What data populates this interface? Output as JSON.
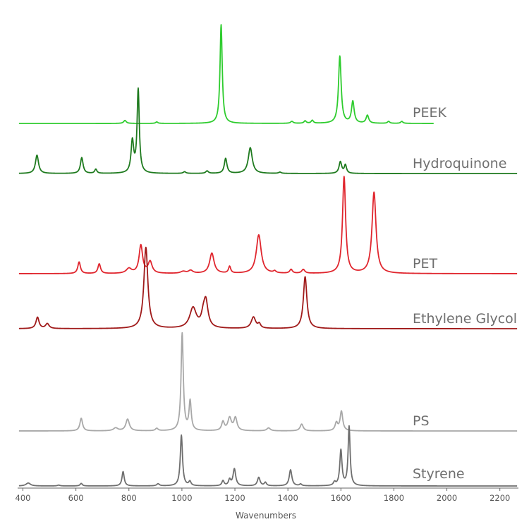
{
  "chart_data": {
    "type": "line",
    "title": "",
    "xlabel": "Wavenumbers",
    "ylabel": "",
    "xlim": [
      380,
      2270
    ],
    "x_ticks": [
      400,
      600,
      800,
      1000,
      1200,
      1400,
      1600,
      1800,
      2000,
      2200
    ],
    "x_tick_labels": [
      "400",
      "600",
      "800",
      "1000",
      "1200",
      "1400",
      "1600",
      "1800",
      "2000",
      "2200"
    ],
    "grid": false,
    "y_axis_visible": false,
    "legend": "none (series labeled at right end of each trace)",
    "layout": "stacked offset spectra, relative intensity",
    "series": [
      {
        "name": "PEEK",
        "color": "#2ecc2e",
        "x_start": 385,
        "x_end": 1950,
        "baseline": 0,
        "peaks": [
          [
            785,
            0.03,
            6
          ],
          [
            905,
            0.015,
            5
          ],
          [
            1148,
            1.0,
            5
          ],
          [
            1415,
            0.02,
            6
          ],
          [
            1465,
            0.025,
            5
          ],
          [
            1492,
            0.03,
            5
          ],
          [
            1596,
            0.68,
            6
          ],
          [
            1645,
            0.22,
            6
          ],
          [
            1700,
            0.08,
            6
          ],
          [
            1780,
            0.02,
            5
          ],
          [
            1830,
            0.02,
            5
          ]
        ]
      },
      {
        "name": "Hydroquinone",
        "color": "#1e7a1e",
        "x_start": 385,
        "x_end": 2265,
        "baseline": 0,
        "peaks": [
          [
            453,
            0.22,
            7
          ],
          [
            622,
            0.19,
            6
          ],
          [
            675,
            0.05,
            5
          ],
          [
            813,
            0.38,
            6
          ],
          [
            835,
            1.0,
            5
          ],
          [
            1010,
            0.02,
            6
          ],
          [
            1095,
            0.03,
            6
          ],
          [
            1165,
            0.18,
            6
          ],
          [
            1258,
            0.31,
            9
          ],
          [
            1370,
            0.015,
            6
          ],
          [
            1598,
            0.14,
            6
          ],
          [
            1617,
            0.1,
            5
          ]
        ]
      },
      {
        "name": "PET",
        "color": "#e0262e",
        "x_start": 385,
        "x_end": 2265,
        "baseline": 0,
        "peaks": [
          [
            612,
            0.12,
            6
          ],
          [
            688,
            0.1,
            6
          ],
          [
            800,
            0.05,
            12
          ],
          [
            845,
            0.29,
            8
          ],
          [
            880,
            0.12,
            9
          ],
          [
            1005,
            0.02,
            12
          ],
          [
            1033,
            0.03,
            10
          ],
          [
            1113,
            0.21,
            10
          ],
          [
            1180,
            0.07,
            5
          ],
          [
            1290,
            0.4,
            11
          ],
          [
            1350,
            0.02,
            6
          ],
          [
            1412,
            0.04,
            6
          ],
          [
            1458,
            0.04,
            7
          ],
          [
            1612,
            1.0,
            7
          ],
          [
            1725,
            0.84,
            9
          ]
        ]
      },
      {
        "name": "Ethylene Glycol",
        "color": "#a01a1a",
        "x_start": 385,
        "x_end": 2265,
        "baseline": 0,
        "peaks": [
          [
            455,
            0.14,
            7
          ],
          [
            492,
            0.06,
            8
          ],
          [
            864,
            1.0,
            9
          ],
          [
            1042,
            0.25,
            15
          ],
          [
            1090,
            0.33,
            10
          ],
          [
            1080,
            0.1,
            8
          ],
          [
            1270,
            0.14,
            10
          ],
          [
            1292,
            0.05,
            6
          ],
          [
            1465,
            0.64,
            8
          ]
        ]
      },
      {
        "name": "PS",
        "color": "#a8a8a8",
        "x_start": 385,
        "x_end": 2265,
        "baseline": 0,
        "peaks": [
          [
            620,
            0.13,
            6
          ],
          [
            750,
            0.03,
            10
          ],
          [
            795,
            0.12,
            8
          ],
          [
            905,
            0.025,
            6
          ],
          [
            1001,
            1.0,
            5
          ],
          [
            1031,
            0.3,
            5
          ],
          [
            1155,
            0.09,
            6
          ],
          [
            1180,
            0.13,
            8
          ],
          [
            1202,
            0.13,
            7
          ],
          [
            1327,
            0.03,
            8
          ],
          [
            1452,
            0.07,
            7
          ],
          [
            1583,
            0.08,
            6
          ],
          [
            1602,
            0.2,
            6
          ]
        ]
      },
      {
        "name": "Styrene",
        "color": "#6e6e6e",
        "x_start": 385,
        "x_end": 2265,
        "baseline": 0,
        "peaks": [
          [
            420,
            0.035,
            10
          ],
          [
            535,
            0.01,
            6
          ],
          [
            620,
            0.03,
            5
          ],
          [
            778,
            0.17,
            5
          ],
          [
            910,
            0.025,
            6
          ],
          [
            998,
            0.6,
            5
          ],
          [
            1030,
            0.05,
            5
          ],
          [
            1155,
            0.06,
            5
          ],
          [
            1180,
            0.07,
            5
          ],
          [
            1198,
            0.2,
            6
          ],
          [
            1290,
            0.1,
            6
          ],
          [
            1315,
            0.04,
            5
          ],
          [
            1410,
            0.19,
            6
          ],
          [
            1448,
            0.02,
            5
          ],
          [
            1576,
            0.04,
            5
          ],
          [
            1600,
            0.42,
            5
          ],
          [
            1631,
            0.7,
            4.5
          ]
        ]
      }
    ]
  }
}
